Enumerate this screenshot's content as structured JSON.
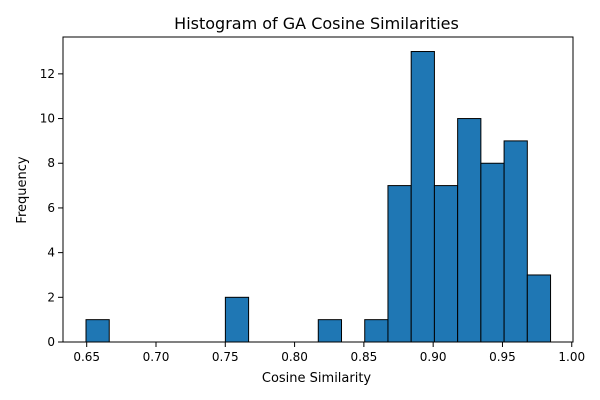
{
  "chart_data": {
    "type": "bar",
    "title": "Histogram of GA Cosine Similarities",
    "xlabel": "Cosine Similarity",
    "ylabel": "Frequency",
    "bin_start": 0.6495,
    "bin_width": 0.01676,
    "counts": [
      1,
      0,
      0,
      0,
      0,
      0,
      2,
      0,
      0,
      0,
      1,
      0,
      1,
      7,
      13,
      7,
      10,
      8,
      9,
      3
    ],
    "xlim": [
      0.6329,
      1.0009
    ],
    "ylim": [
      0,
      13.65
    ],
    "x_ticks": [
      0.65,
      0.7,
      0.75,
      0.8,
      0.85,
      0.9,
      0.95,
      1.0
    ],
    "x_tick_labels": [
      "0.65",
      "0.70",
      "0.75",
      "0.80",
      "0.85",
      "0.90",
      "0.95",
      "1.00"
    ],
    "y_ticks": [
      0,
      2,
      4,
      6,
      8,
      10,
      12
    ],
    "y_tick_labels": [
      "0",
      "2",
      "4",
      "6",
      "8",
      "10",
      "12"
    ],
    "bar_color": "#1f77b4",
    "edge_color": "#000000",
    "grid": false,
    "legend": "none"
  }
}
